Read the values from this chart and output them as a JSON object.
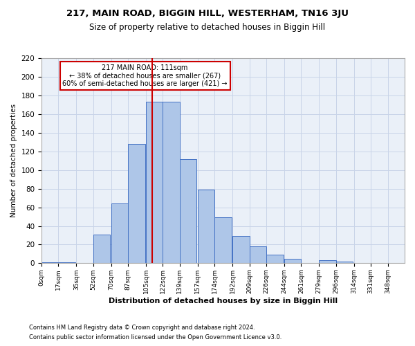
{
  "title1": "217, MAIN ROAD, BIGGIN HILL, WESTERHAM, TN16 3JU",
  "title2": "Size of property relative to detached houses in Biggin Hill",
  "xlabel": "Distribution of detached houses by size in Biggin Hill",
  "ylabel": "Number of detached properties",
  "footer1": "Contains HM Land Registry data © Crown copyright and database right 2024.",
  "footer2": "Contains public sector information licensed under the Open Government Licence v3.0.",
  "annotation_line1": "217 MAIN ROAD: 111sqm",
  "annotation_line2": "← 38% of detached houses are smaller (267)",
  "annotation_line3": "60% of semi-detached houses are larger (421) →",
  "property_size": 111,
  "bar_left_edges": [
    0,
    17,
    35,
    52,
    70,
    87,
    105,
    122,
    139,
    157,
    174,
    192,
    209,
    226,
    244,
    261,
    279,
    296,
    314,
    331
  ],
  "bar_heights": [
    1,
    1,
    0,
    31,
    64,
    128,
    173,
    173,
    112,
    79,
    49,
    29,
    18,
    9,
    5,
    0,
    3,
    2,
    0,
    0
  ],
  "bin_width": 17,
  "bar_color": "#aec6e8",
  "bar_edge_color": "#4472c4",
  "vline_color": "#cc0000",
  "vline_x": 111,
  "grid_color": "#c8d4e8",
  "bg_color": "#eaf0f8",
  "annotation_box_color": "#ffffff",
  "annotation_box_edge": "#cc0000",
  "tick_labels": [
    "0sqm",
    "17sqm",
    "35sqm",
    "52sqm",
    "70sqm",
    "87sqm",
    "105sqm",
    "122sqm",
    "139sqm",
    "157sqm",
    "174sqm",
    "192sqm",
    "209sqm",
    "226sqm",
    "244sqm",
    "261sqm",
    "279sqm",
    "296sqm",
    "314sqm",
    "331sqm",
    "348sqm"
  ],
  "ylim": [
    0,
    220
  ],
  "yticks": [
    0,
    20,
    40,
    60,
    80,
    100,
    120,
    140,
    160,
    180,
    200,
    220
  ],
  "tick_positions": [
    0,
    17,
    35,
    52,
    70,
    87,
    105,
    122,
    139,
    157,
    174,
    192,
    209,
    226,
    244,
    261,
    279,
    296,
    314,
    331,
    348
  ],
  "xlim_max": 365
}
